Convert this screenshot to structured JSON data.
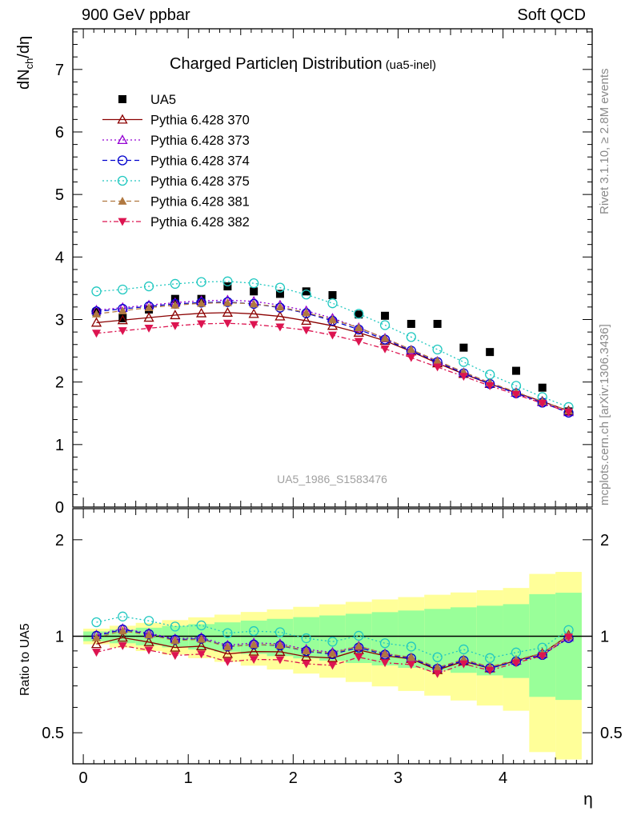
{
  "header": {
    "left": "900 GeV ppbar",
    "right": "Soft QCD"
  },
  "side_labels": {
    "rivet": "Rivet 3.1.10, ≥ 2.8M events",
    "mcplots": "mcplots.cern.ch [arXiv:1306.3436]"
  },
  "chart_data": {
    "type": "scatter",
    "title": "Charged Particleη Distribution",
    "title_suffix": "(ua5-inel)",
    "watermark": "UA5_1986_S1583476",
    "xlabel": "η",
    "ylabel_main": "dN_ch/dη",
    "ylabel_ratio": "Ratio to UA5",
    "xlim": [
      -0.1,
      4.85
    ],
    "ylim_main": [
      0,
      7.65
    ],
    "ylim_ratio": [
      0.4,
      2.5
    ],
    "ratio_log_scale": true,
    "x_ticks": [
      "0",
      "1",
      "2",
      "3",
      "4"
    ],
    "y_ticks_main": [
      "0",
      "1",
      "2",
      "3",
      "4",
      "5",
      "6",
      "7"
    ],
    "y_ticks_ratio": [
      "0.5",
      "1",
      "2"
    ],
    "x": [
      0.125,
      0.375,
      0.625,
      0.875,
      1.125,
      1.375,
      1.625,
      1.875,
      2.125,
      2.375,
      2.625,
      2.875,
      3.125,
      3.375,
      3.625,
      3.875,
      4.125,
      4.375,
      4.625
    ],
    "series": [
      {
        "name": "UA5",
        "color": "#000000",
        "marker": "square",
        "line": "none",
        "values": [
          3.12,
          3.02,
          3.16,
          3.33,
          3.33,
          3.53,
          3.45,
          3.41,
          3.45,
          3.39,
          3.08,
          3.06,
          2.93,
          2.93,
          2.55,
          2.48,
          2.18,
          1.91,
          1.53
        ]
      },
      {
        "name": "Pythia 6.428 370",
        "color": "#8b0000",
        "marker": "triangle-open",
        "line": "solid",
        "values": [
          2.95,
          2.99,
          3.03,
          3.07,
          3.1,
          3.11,
          3.09,
          3.05,
          2.98,
          2.9,
          2.79,
          2.66,
          2.49,
          2.3,
          2.13,
          1.97,
          1.83,
          1.69,
          1.54
        ]
      },
      {
        "name": "Pythia 6.428 373",
        "color": "#9400d3",
        "marker": "triangle-open",
        "line": "dotted",
        "values": [
          3.15,
          3.19,
          3.23,
          3.27,
          3.3,
          3.31,
          3.29,
          3.23,
          3.14,
          3.02,
          2.87,
          2.7,
          2.51,
          2.33,
          2.15,
          1.98,
          1.83,
          1.68,
          1.52
        ]
      },
      {
        "name": "Pythia 6.428 374",
        "color": "#0000cd",
        "marker": "circle-open",
        "line": "dashed",
        "values": [
          3.13,
          3.17,
          3.21,
          3.25,
          3.27,
          3.28,
          3.25,
          3.19,
          3.1,
          2.98,
          2.84,
          2.68,
          2.5,
          2.32,
          2.14,
          1.97,
          1.82,
          1.67,
          1.51
        ]
      },
      {
        "name": "Pythia 6.428 375",
        "color": "#20c8c0",
        "marker": "circle-open",
        "line": "dotted",
        "values": [
          3.45,
          3.48,
          3.53,
          3.57,
          3.6,
          3.61,
          3.58,
          3.51,
          3.4,
          3.26,
          3.09,
          2.91,
          2.72,
          2.52,
          2.32,
          2.12,
          1.94,
          1.76,
          1.6
        ]
      },
      {
        "name": "Pythia 6.428 381",
        "color": "#b07840",
        "marker": "triangle",
        "line": "dashed",
        "values": [
          3.09,
          3.14,
          3.19,
          3.23,
          3.26,
          3.27,
          3.25,
          3.2,
          3.11,
          3.0,
          2.87,
          2.7,
          2.52,
          2.34,
          2.16,
          1.99,
          1.84,
          1.69,
          1.54
        ]
      },
      {
        "name": "Pythia 6.428 382",
        "color": "#dc1450",
        "marker": "triangle-down",
        "line": "dashdot",
        "values": [
          2.78,
          2.82,
          2.86,
          2.9,
          2.93,
          2.94,
          2.92,
          2.88,
          2.83,
          2.75,
          2.65,
          2.53,
          2.39,
          2.24,
          2.09,
          1.94,
          1.8,
          1.66,
          1.52
        ]
      }
    ]
  }
}
